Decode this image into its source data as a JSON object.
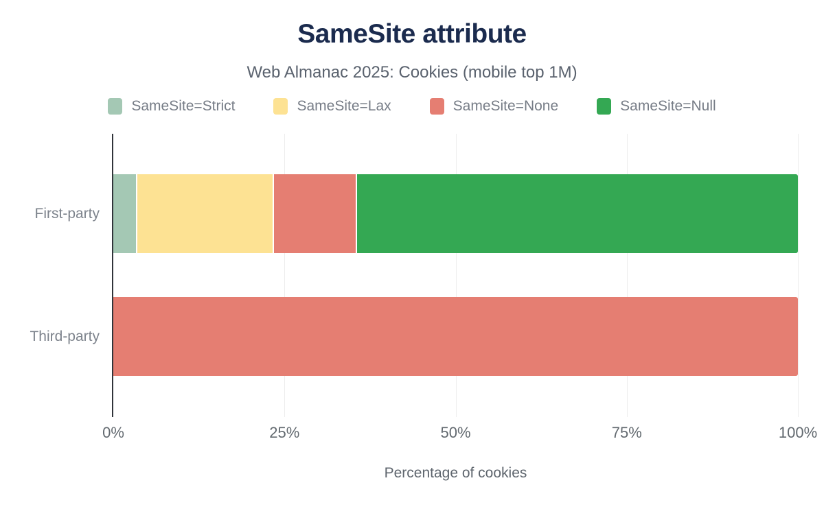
{
  "header": {
    "title": "SameSite attribute",
    "subtitle": "Web Almanac 2025: Cookies (mobile top 1M)"
  },
  "chart_data": {
    "type": "bar",
    "orientation": "horizontal",
    "stacked": true,
    "title": "SameSite attribute",
    "subtitle": "Web Almanac 2025: Cookies (mobile top 1M)",
    "categories": [
      "First-party",
      "Third-party"
    ],
    "series": [
      {
        "name": "SameSite=Strict",
        "color": "#a4c8b4",
        "values": [
          3.3,
          0
        ]
      },
      {
        "name": "SameSite=Lax",
        "color": "#fde293",
        "values": [
          19.9,
          0
        ]
      },
      {
        "name": "SameSite=None",
        "color": "#e57e72",
        "values": [
          12.0,
          100
        ]
      },
      {
        "name": "SameSite=Null",
        "color": "#34a853",
        "values": [
          64.8,
          0
        ]
      }
    ],
    "xlabel": "Percentage of cookies",
    "xlim": [
      0,
      100
    ],
    "xticks": [
      0,
      25,
      50,
      75,
      100
    ],
    "xtick_labels": [
      "0%",
      "25%",
      "50%",
      "75%",
      "100%"
    ],
    "grid": true,
    "legend_position": "top"
  },
  "colors": {
    "title_text": "#1b2b4e",
    "subtitle_text": "#5a626e",
    "legend_text": "#767c86",
    "axis_line": "#30343a",
    "gridline": "#ededed",
    "tick_text": "#62696f",
    "category_text": "#7d838c",
    "background": "#ffffff"
  }
}
